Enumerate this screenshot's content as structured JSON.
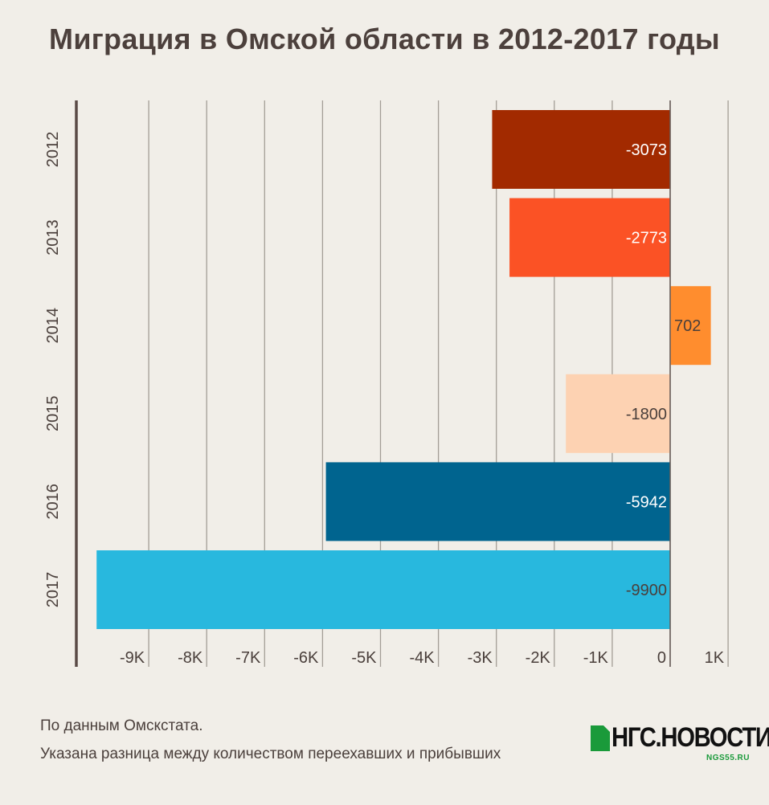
{
  "title": "Миграция в Омской области в 2012-2017 годы",
  "chart_data": {
    "type": "bar",
    "orientation": "horizontal",
    "categories": [
      "2012",
      "2013",
      "2014",
      "2015",
      "2016",
      "2017"
    ],
    "values": [
      -3073,
      -2773,
      702,
      -1800,
      -5942,
      -9900
    ],
    "value_labels": [
      "-3073",
      "-2773",
      "702",
      "-1800",
      "-5942",
      "-9900"
    ],
    "colors": [
      "#a22a00",
      "#fb5225",
      "#ff8d2e",
      "#fdd2b2",
      "#00648f",
      "#28b8de"
    ],
    "label_colors": [
      "#ffffff",
      "#ffffff",
      "#4a3f3b",
      "#4a3f3b",
      "#ffffff",
      "#4a3f3b"
    ],
    "xlim": [
      -10000,
      1000
    ],
    "xticks": [
      -9000,
      -8000,
      -7000,
      -6000,
      -5000,
      -4000,
      -3000,
      -2000,
      -1000,
      0,
      1000
    ],
    "xtick_labels": [
      "-9K",
      "-8K",
      "-7K",
      "-6K",
      "-5K",
      "-4K",
      "-3K",
      "-2K",
      "-1K",
      "0",
      "1K"
    ],
    "grid": true
  },
  "notes": {
    "line1": "По данным Омскстата.",
    "line2": "Указана разница между количеством переехавших и прибывших"
  },
  "logo": {
    "text": "НГС.НОВОСТИ",
    "sub": "NGS55.RU"
  }
}
